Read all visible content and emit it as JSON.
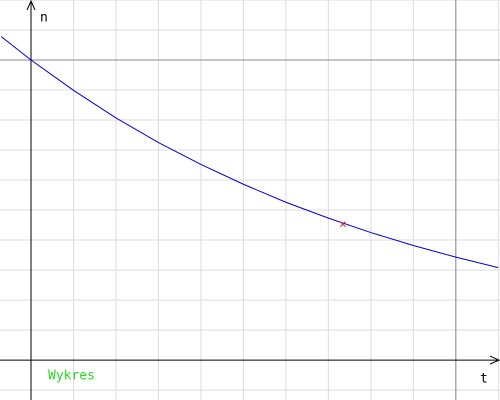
{
  "chart_data": {
    "type": "line",
    "x_axis_label": "t",
    "y_axis_label": "n",
    "legend_label": "Wykres",
    "legend_color": "#22dd22",
    "xlim": [
      -0.73,
      11.04
    ],
    "ylim": [
      -1.33,
      12
    ],
    "xgrid": [
      1,
      2,
      3,
      4,
      5,
      6,
      7,
      8,
      9,
      10,
      11
    ],
    "ygrid": [
      -1,
      1,
      2,
      3,
      4,
      5,
      6,
      7,
      8,
      9,
      10,
      11,
      12
    ],
    "grid_color": "#dddddd",
    "reference_lines": {
      "x": [
        10
      ],
      "y": [
        10
      ],
      "color": "#888888"
    },
    "x": [
      -0.7,
      0,
      1,
      2,
      3,
      4,
      5,
      6,
      7,
      8,
      9,
      10,
      11
    ],
    "series": [
      {
        "name": "Wykres",
        "color": "#0000dd",
        "values": [
          10.78,
          10,
          8.99,
          8.07,
          7.25,
          6.52,
          5.86,
          5.26,
          4.73,
          4.25,
          3.82,
          3.43,
          3.08
        ]
      }
    ],
    "marker": {
      "x": 7.34,
      "y": 4.53,
      "color": "#dd2222"
    }
  }
}
